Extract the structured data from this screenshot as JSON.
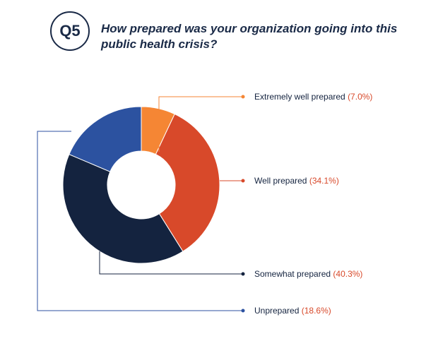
{
  "header": {
    "badge": "Q5",
    "question": "How prepared was your organization going into this public health crisis?"
  },
  "chart_data": {
    "type": "pie",
    "style": "donut",
    "categories": [
      "Extremely well prepared",
      "Well prepared",
      "Somewhat prepared",
      "Unprepared"
    ],
    "values": [
      7.0,
      34.1,
      40.3,
      18.6
    ],
    "value_labels": [
      "(7.0%)",
      "(34.1%)",
      "(40.3%)",
      "(18.6%)"
    ],
    "colors": [
      "#f58634",
      "#d8492a",
      "#14233f",
      "#2c52a0"
    ],
    "label_value_color": "#d8492a",
    "legend_placement": "right"
  }
}
